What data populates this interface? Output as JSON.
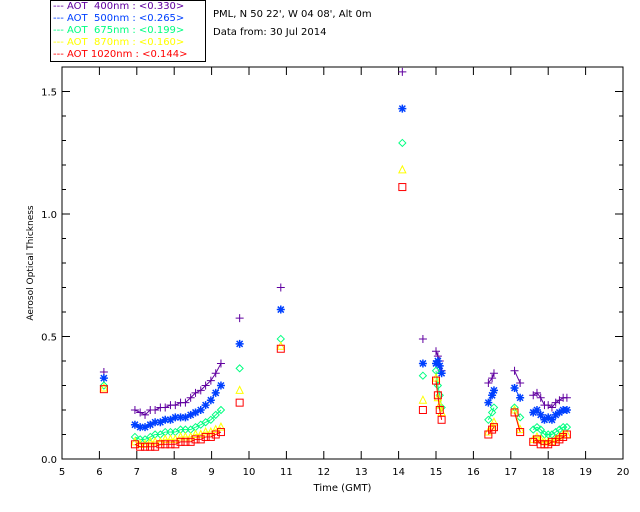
{
  "chart_data": {
    "type": "scatter",
    "title": "",
    "info_lines": [
      "PML, N 50 22', W 04 08', Alt 0m",
      "Data from: 30 Jul 2014"
    ],
    "xlabel": "Time (GMT)",
    "ylabel": "Aerosol Optical Thickness",
    "xlim": [
      5,
      20
    ],
    "ylim": [
      0,
      1.6
    ],
    "xticks": [
      "5",
      "6",
      "7",
      "8",
      "9",
      "10",
      "11",
      "12",
      "13",
      "14",
      "15",
      "16",
      "17",
      "18",
      "19",
      "20"
    ],
    "yticks": [
      "0.0",
      "0.5",
      "1.0",
      "1.5"
    ],
    "x": [
      6.12,
      6.95,
      7.09,
      7.22,
      7.36,
      7.49,
      7.63,
      7.76,
      7.9,
      8.03,
      8.17,
      8.3,
      8.44,
      8.57,
      8.71,
      8.84,
      8.98,
      9.11,
      9.25,
      9.75,
      10.85,
      14.1,
      14.65,
      15.0,
      15.05,
      15.1,
      15.15,
      16.4,
      16.5,
      16.55,
      17.1,
      17.25,
      17.6,
      17.7,
      17.8,
      17.9,
      18.0,
      18.1,
      18.2,
      18.3,
      18.4,
      18.5
    ],
    "series": [
      {
        "name": "AOT  400nm : <0.330>",
        "color": "#6000a0",
        "marker": "plus",
        "values": [
          0.355,
          0.2,
          0.19,
          0.18,
          0.2,
          0.2,
          0.21,
          0.21,
          0.22,
          0.22,
          0.23,
          0.23,
          0.25,
          0.27,
          0.28,
          0.3,
          0.32,
          0.35,
          0.39,
          0.575,
          0.7,
          1.58,
          0.49,
          0.44,
          0.42,
          0.4,
          0.36,
          0.31,
          0.33,
          0.35,
          0.36,
          0.31,
          0.26,
          0.27,
          0.25,
          0.22,
          0.22,
          0.21,
          0.23,
          0.24,
          0.25,
          0.25
        ]
      },
      {
        "name": "AOT  500nm : <0.265>",
        "color": "#0040ff",
        "marker": "star",
        "values": [
          0.33,
          0.14,
          0.13,
          0.13,
          0.14,
          0.15,
          0.15,
          0.16,
          0.16,
          0.17,
          0.17,
          0.17,
          0.18,
          0.19,
          0.2,
          0.22,
          0.24,
          0.27,
          0.3,
          0.47,
          0.61,
          1.43,
          0.39,
          0.39,
          0.4,
          0.38,
          0.35,
          0.23,
          0.26,
          0.28,
          0.29,
          0.25,
          0.19,
          0.2,
          0.18,
          0.16,
          0.17,
          0.16,
          0.18,
          0.19,
          0.2,
          0.2
        ]
      },
      {
        "name": "AOT  675nm : <0.199>",
        "color": "#00ff80",
        "marker": "diamond",
        "values": [
          0.3,
          0.09,
          0.08,
          0.08,
          0.09,
          0.1,
          0.1,
          0.11,
          0.11,
          0.11,
          0.12,
          0.12,
          0.12,
          0.13,
          0.14,
          0.15,
          0.16,
          0.18,
          0.2,
          0.37,
          0.49,
          1.29,
          0.34,
          0.36,
          0.3,
          0.26,
          0.21,
          0.16,
          0.19,
          0.21,
          0.21,
          0.17,
          0.12,
          0.13,
          0.12,
          0.1,
          0.1,
          0.1,
          0.11,
          0.12,
          0.13,
          0.13
        ]
      },
      {
        "name": "AOT  870nm : <0.160>",
        "color": "#ffff00",
        "marker": "triangle",
        "values": [
          0.29,
          0.07,
          0.06,
          0.06,
          0.07,
          0.07,
          0.07,
          0.08,
          0.08,
          0.08,
          0.09,
          0.09,
          0.09,
          0.1,
          0.1,
          0.11,
          0.11,
          0.12,
          0.13,
          0.28,
          0.46,
          1.18,
          0.24,
          0.33,
          0.25,
          0.22,
          0.19,
          0.11,
          0.13,
          0.15,
          0.2,
          0.12,
          0.08,
          0.09,
          0.08,
          0.07,
          0.07,
          0.07,
          0.08,
          0.09,
          0.1,
          0.1
        ]
      },
      {
        "name": "AOT 1020nm : <0.144>",
        "color": "#ff0000",
        "marker": "square",
        "values": [
          0.285,
          0.06,
          0.05,
          0.05,
          0.05,
          0.05,
          0.06,
          0.06,
          0.06,
          0.06,
          0.07,
          0.07,
          0.07,
          0.08,
          0.08,
          0.09,
          0.09,
          0.1,
          0.11,
          0.23,
          0.45,
          1.11,
          0.2,
          0.32,
          0.26,
          0.2,
          0.16,
          0.1,
          0.12,
          0.13,
          0.19,
          0.11,
          0.07,
          0.08,
          0.06,
          0.06,
          0.06,
          0.07,
          0.07,
          0.08,
          0.09,
          0.1
        ]
      }
    ],
    "legend": "top-left"
  }
}
